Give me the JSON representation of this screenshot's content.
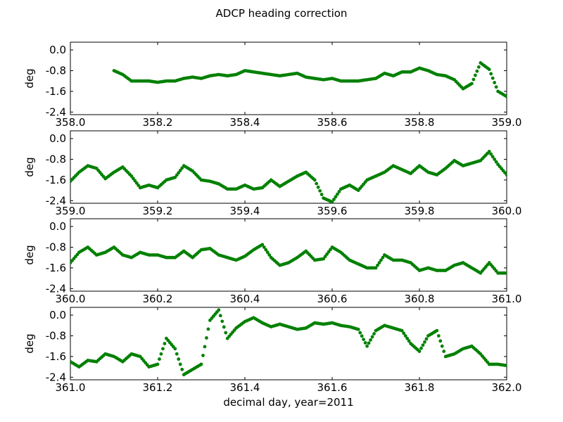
{
  "title": "ADCP heading correction",
  "xlabel": "decimal day, year=2011",
  "marker_color": "#008000",
  "chart_data": [
    {
      "type": "scatter",
      "ylabel": "deg",
      "xlim": [
        358.0,
        359.0
      ],
      "ylim": [
        -2.5,
        0.3
      ],
      "xticks": [
        "358.0",
        "358.2",
        "358.4",
        "358.6",
        "358.8",
        "359.0"
      ],
      "yticks": [
        "0.0",
        "-0.8",
        "-1.6",
        "-2.4"
      ],
      "x": [
        358.1,
        358.12,
        358.14,
        358.16,
        358.18,
        358.2,
        358.22,
        358.24,
        358.26,
        358.28,
        358.3,
        358.32,
        358.34,
        358.36,
        358.38,
        358.4,
        358.42,
        358.44,
        358.46,
        358.48,
        358.5,
        358.52,
        358.54,
        358.56,
        358.58,
        358.6,
        358.62,
        358.64,
        358.66,
        358.68,
        358.7,
        358.72,
        358.74,
        358.76,
        358.78,
        358.8,
        358.82,
        358.84,
        358.86,
        358.88,
        358.9,
        358.92,
        358.94,
        358.96,
        358.98,
        359.0
      ],
      "y": [
        -0.8,
        -0.95,
        -1.2,
        -1.2,
        -1.2,
        -1.25,
        -1.2,
        -1.2,
        -1.1,
        -1.05,
        -1.1,
        -1.0,
        -0.95,
        -1.0,
        -0.95,
        -0.8,
        -0.85,
        -0.9,
        -0.95,
        -1.0,
        -0.95,
        -0.9,
        -1.05,
        -1.1,
        -1.15,
        -1.1,
        -1.2,
        -1.2,
        -1.2,
        -1.15,
        -1.1,
        -0.9,
        -1.0,
        -0.85,
        -0.85,
        -0.7,
        -0.8,
        -0.95,
        -1.0,
        -1.15,
        -1.5,
        -1.3,
        -0.5,
        -0.75,
        -1.6,
        -1.8
      ]
    },
    {
      "type": "scatter",
      "ylabel": "deg",
      "xlim": [
        359.0,
        360.0
      ],
      "ylim": [
        -2.5,
        0.3
      ],
      "xticks": [
        "359.0",
        "359.2",
        "359.4",
        "359.6",
        "359.8",
        "360.0"
      ],
      "yticks": [
        "0.0",
        "-0.8",
        "-1.6",
        "-2.4"
      ],
      "x": [
        359.0,
        359.02,
        359.04,
        359.06,
        359.08,
        359.1,
        359.12,
        359.14,
        359.16,
        359.18,
        359.2,
        359.22,
        359.24,
        359.26,
        359.28,
        359.3,
        359.32,
        359.34,
        359.36,
        359.38,
        359.4,
        359.42,
        359.44,
        359.46,
        359.48,
        359.5,
        359.52,
        359.54,
        359.56,
        359.58,
        359.6,
        359.62,
        359.64,
        359.66,
        359.68,
        359.7,
        359.72,
        359.74,
        359.76,
        359.78,
        359.8,
        359.82,
        359.84,
        359.86,
        359.88,
        359.9,
        359.92,
        359.94,
        359.96,
        359.98,
        360.0
      ],
      "y": [
        -1.65,
        -1.3,
        -1.05,
        -1.15,
        -1.55,
        -1.3,
        -1.1,
        -1.45,
        -1.9,
        -1.8,
        -1.9,
        -1.6,
        -1.5,
        -1.05,
        -1.25,
        -1.6,
        -1.65,
        -1.75,
        -1.95,
        -1.95,
        -1.8,
        -1.95,
        -1.9,
        -1.6,
        -1.85,
        -1.65,
        -1.45,
        -1.3,
        -1.6,
        -2.3,
        -2.45,
        -1.95,
        -1.8,
        -2.0,
        -1.6,
        -1.45,
        -1.3,
        -1.05,
        -1.2,
        -1.35,
        -1.05,
        -1.3,
        -1.4,
        -1.15,
        -0.85,
        -1.05,
        -0.95,
        -0.85,
        -0.5,
        -1.0,
        -1.4
      ]
    },
    {
      "type": "scatter",
      "ylabel": "deg",
      "xlim": [
        360.0,
        361.0
      ],
      "ylim": [
        -2.5,
        0.3
      ],
      "xticks": [
        "360.0",
        "360.2",
        "360.4",
        "360.6",
        "360.8",
        "361.0"
      ],
      "yticks": [
        "0.0",
        "-0.8",
        "-1.6",
        "-2.4"
      ],
      "x": [
        360.0,
        360.02,
        360.04,
        360.06,
        360.08,
        360.1,
        360.12,
        360.14,
        360.16,
        360.18,
        360.2,
        360.22,
        360.24,
        360.26,
        360.28,
        360.3,
        360.32,
        360.34,
        360.36,
        360.38,
        360.4,
        360.42,
        360.44,
        360.46,
        360.48,
        360.5,
        360.52,
        360.54,
        360.56,
        360.58,
        360.6,
        360.62,
        360.64,
        360.66,
        360.68,
        360.7,
        360.72,
        360.74,
        360.76,
        360.78,
        360.8,
        360.82,
        360.84,
        360.86,
        360.88,
        360.9,
        360.92,
        360.94,
        360.96,
        360.98,
        361.0
      ],
      "y": [
        -1.4,
        -1.0,
        -0.8,
        -1.1,
        -1.0,
        -0.8,
        -1.1,
        -1.2,
        -1.0,
        -1.1,
        -1.1,
        -1.2,
        -1.2,
        -0.95,
        -1.2,
        -0.9,
        -0.85,
        -1.1,
        -1.2,
        -1.3,
        -1.15,
        -0.9,
        -0.7,
        -1.2,
        -1.5,
        -1.4,
        -1.2,
        -0.95,
        -1.3,
        -1.25,
        -0.8,
        -1.0,
        -1.3,
        -1.45,
        -1.6,
        -1.6,
        -1.1,
        -1.3,
        -1.3,
        -1.4,
        -1.7,
        -1.6,
        -1.7,
        -1.7,
        -1.5,
        -1.4,
        -1.6,
        -1.8,
        -1.4,
        -1.8,
        -1.8
      ]
    },
    {
      "type": "scatter",
      "ylabel": "deg",
      "xlim": [
        361.0,
        362.0
      ],
      "ylim": [
        -2.5,
        0.3
      ],
      "xticks": [
        "361.0",
        "361.2",
        "361.4",
        "361.6",
        "361.8",
        "362.0"
      ],
      "yticks": [
        "0.0",
        "-0.8",
        "-1.6",
        "-2.4"
      ],
      "x": [
        361.0,
        361.02,
        361.04,
        361.06,
        361.08,
        361.1,
        361.12,
        361.14,
        361.16,
        361.18,
        361.2,
        361.22,
        361.24,
        361.26,
        361.28,
        361.3,
        361.32,
        361.34,
        361.36,
        361.38,
        361.4,
        361.42,
        361.44,
        361.46,
        361.48,
        361.5,
        361.52,
        361.54,
        361.56,
        361.58,
        361.6,
        361.62,
        361.64,
        361.66,
        361.68,
        361.7,
        361.72,
        361.74,
        361.76,
        361.78,
        361.8,
        361.82,
        361.84,
        361.86,
        361.88,
        361.9,
        361.92,
        361.94,
        361.96,
        361.98,
        362.0
      ],
      "y": [
        -1.8,
        -2.0,
        -1.75,
        -1.8,
        -1.5,
        -1.6,
        -1.8,
        -1.5,
        -1.6,
        -2.0,
        -1.9,
        -0.9,
        -1.3,
        -2.3,
        -2.1,
        -1.9,
        -0.2,
        0.2,
        -0.9,
        -0.5,
        -0.25,
        -0.1,
        -0.3,
        -0.45,
        -0.35,
        -0.45,
        -0.55,
        -0.5,
        -0.3,
        -0.35,
        -0.3,
        -0.4,
        -0.45,
        -0.55,
        -1.2,
        -0.6,
        -0.4,
        -0.5,
        -0.6,
        -1.1,
        -1.4,
        -0.8,
        -0.6,
        -1.6,
        -1.5,
        -1.3,
        -1.2,
        -1.5,
        -1.9,
        -1.9,
        -1.95
      ]
    }
  ]
}
